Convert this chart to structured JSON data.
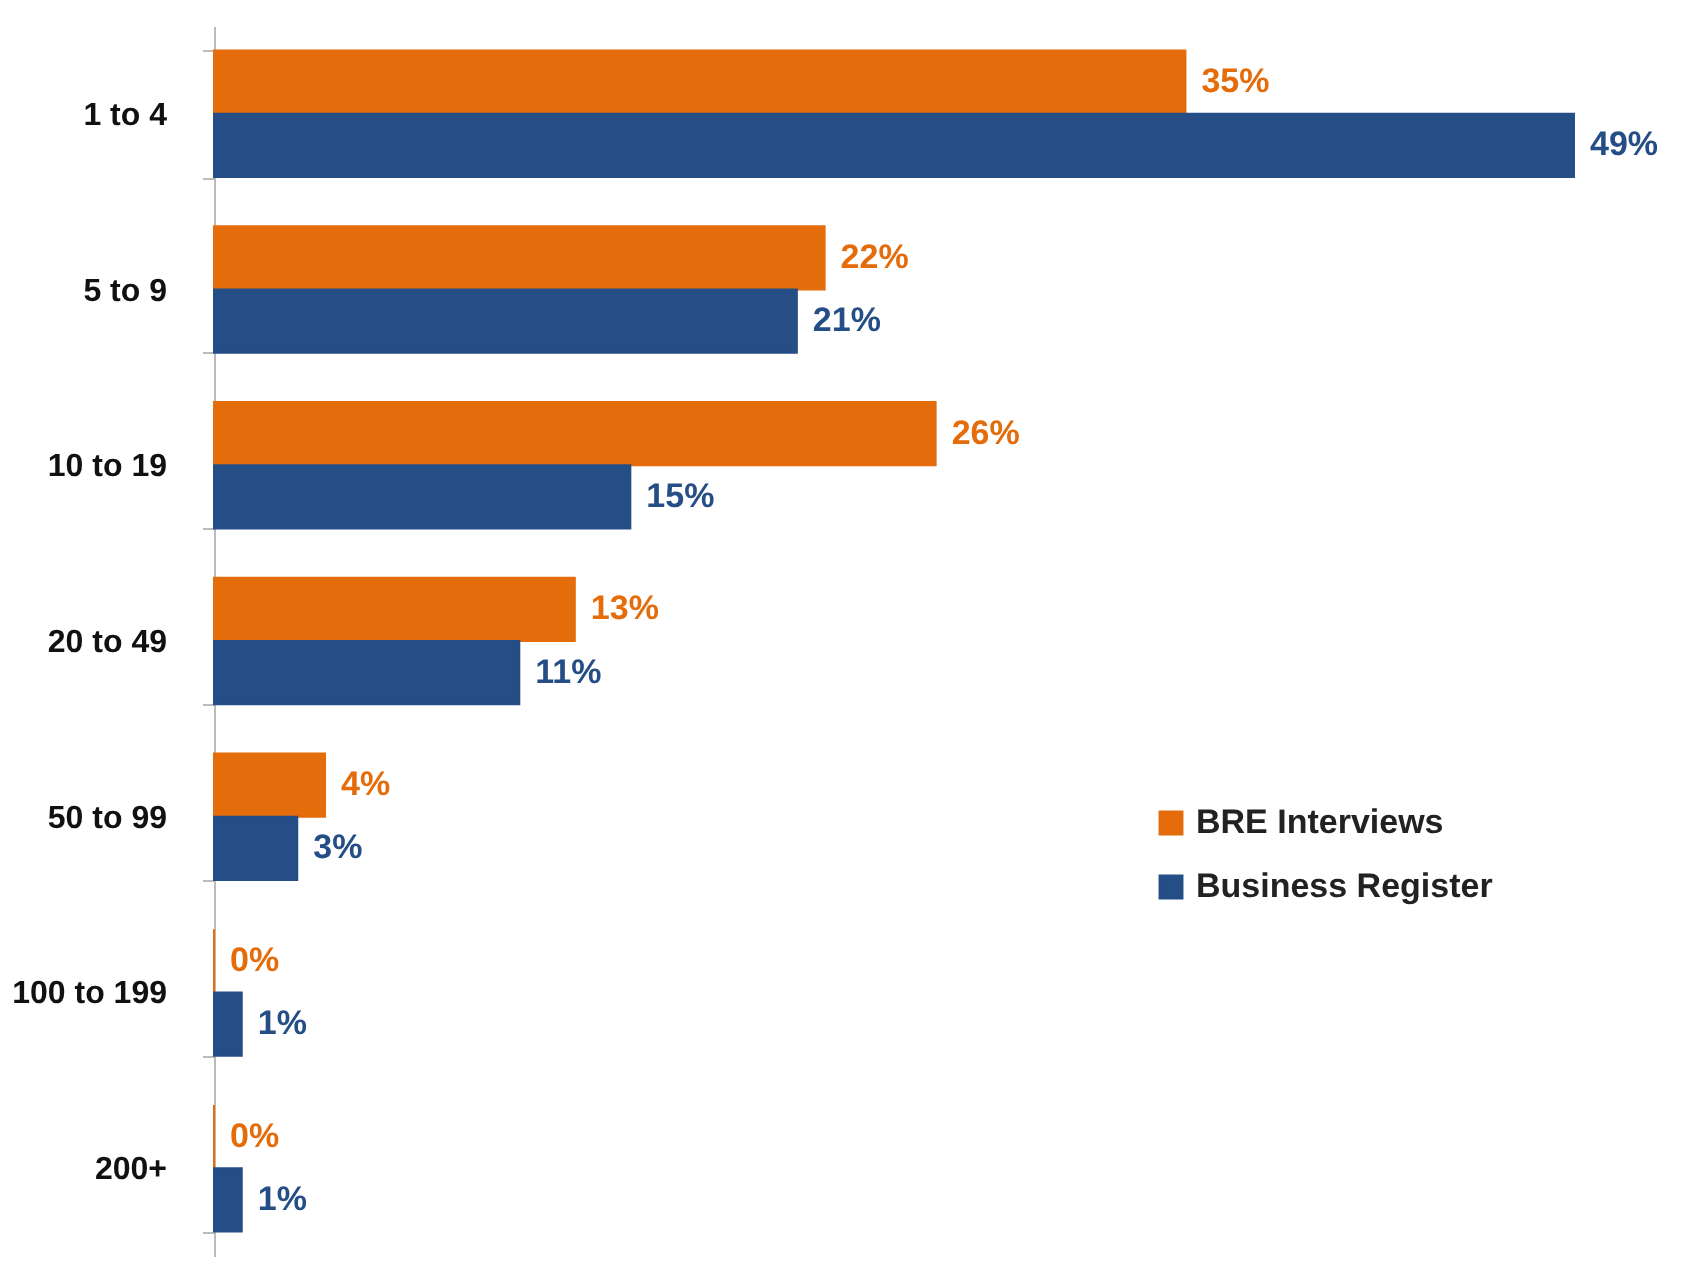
{
  "chart_data": {
    "type": "bar",
    "orientation": "horizontal",
    "categories": [
      "1 to 4",
      "5 to 9",
      "10 to 19",
      "20 to 49",
      "50 to 99",
      "100 to 199",
      "200+"
    ],
    "series": [
      {
        "name": "BRE Interviews",
        "color": "#e46c0a",
        "values": [
          35,
          22,
          26,
          13,
          4,
          0,
          0
        ],
        "value_labels": [
          "35%",
          "22%",
          "26%",
          "13%",
          "4%",
          "0%",
          "0%"
        ]
      },
      {
        "name": "Business Register",
        "color": "#254e86",
        "values": [
          49,
          21,
          15,
          11,
          3,
          1,
          1
        ],
        "value_labels": [
          "49%",
          "21%",
          "15%",
          "11%",
          "3%",
          "1%",
          "1%"
        ]
      }
    ],
    "legend": "right",
    "grid": false
  }
}
